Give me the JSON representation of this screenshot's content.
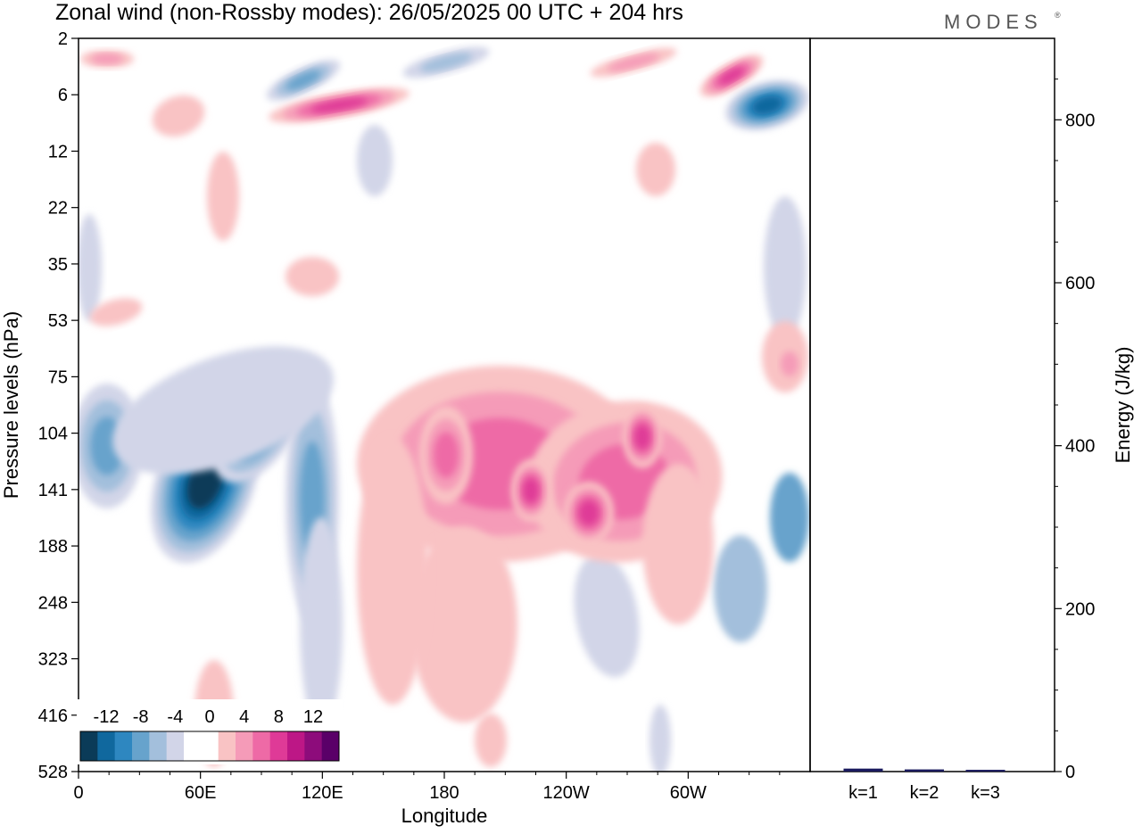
{
  "title": "Zonal wind (non-Rossby modes):  26/05/2025  00 UTC  + 204 hrs",
  "logo": "MODES",
  "logo_mark": "®",
  "chart_data": [
    {
      "type": "heatmap",
      "title": "Zonal wind (non-Rossby modes):  26/05/2025  00 UTC  + 204 hrs",
      "xlabel": "Longitude",
      "ylabel": "Pressure levels (hPa)",
      "x_ticks": [
        "0",
        "60E",
        "120E",
        "180",
        "120W",
        "60W"
      ],
      "x_tick_values": [
        0,
        60,
        120,
        180,
        240,
        300
      ],
      "xlim": [
        0,
        360
      ],
      "y_ticks": [
        "2",
        "6",
        "12",
        "22",
        "35",
        "53",
        "75",
        "104",
        "141",
        "188",
        "248",
        "323",
        "416",
        "528"
      ],
      "y_axis": "pressure, increasing downward",
      "colorbar": {
        "labels": [
          "-12",
          "-8",
          "-4",
          "0",
          "4",
          "8",
          "12"
        ],
        "colors": [
          "#0b3b58",
          "#10689e",
          "#2e87c0",
          "#67a3cc",
          "#a3bfdc",
          "#d2d5e8",
          "#ffffff",
          "#ffffff",
          "#f9c3c4",
          "#f59bb8",
          "#ee6aa6",
          "#df3a97",
          "#bd1786",
          "#8d0c7b",
          "#5a0068"
        ]
      },
      "features": [
        {
          "sign": "negative",
          "lon": [
            40,
            100
          ],
          "level": [
            90,
            230
          ],
          "peak": -14,
          "note": "strong easterly core near 60E 141 hPa"
        },
        {
          "sign": "positive",
          "lon": [
            140,
            350
          ],
          "level": [
            80,
            300
          ],
          "peak": 10,
          "note": "westerly band in upper troposphere"
        },
        {
          "sign": "negative",
          "lon": [
            320,
            360
          ],
          "level": [
            5,
            10
          ],
          "peak": -10
        },
        {
          "sign": "positive",
          "lon": [
            320,
            350
          ],
          "level": [
            3,
            7
          ],
          "peak": 9
        },
        {
          "sign": "positive",
          "lon": [
            90,
            160
          ],
          "level": [
            6,
            9
          ],
          "peak": 10
        }
      ]
    },
    {
      "type": "bar",
      "categories": [
        "k=1",
        "k=2",
        "k=3"
      ],
      "values": [
        2,
        1,
        0.5
      ],
      "ylabel": "Energy (J/kg)",
      "y_ticks": [
        "0",
        "200",
        "400",
        "600",
        "800"
      ],
      "ylim": [
        0,
        900
      ],
      "bar_color": "#1a1a5e"
    }
  ]
}
